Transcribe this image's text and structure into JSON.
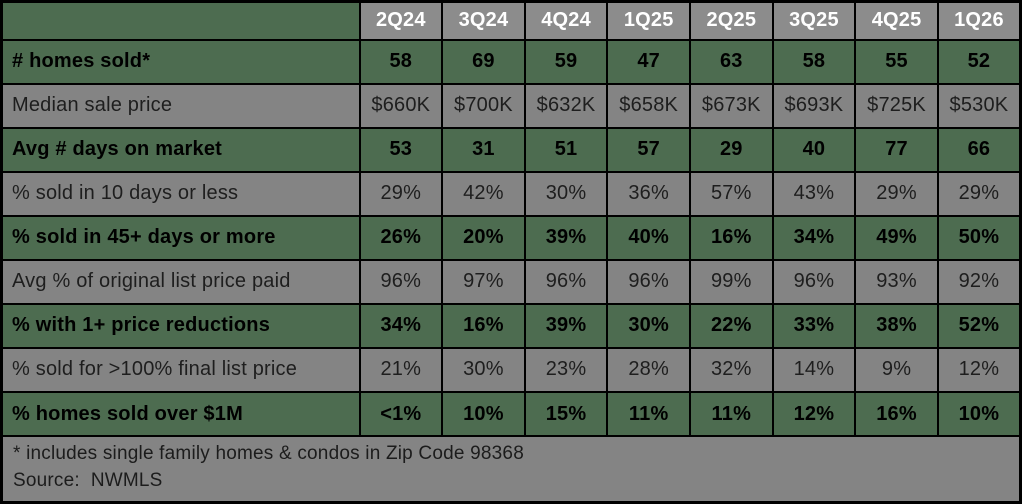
{
  "colors": {
    "green": "#4d6c50",
    "row_gray": "#848484",
    "header_gray": "#8c8c8c",
    "border": "#000000",
    "header_text": "#ffffff"
  },
  "chart_data": {
    "type": "table",
    "title": "",
    "quarters": [
      "2Q24",
      "3Q24",
      "4Q24",
      "1Q25",
      "2Q25",
      "3Q25",
      "4Q25",
      "1Q26"
    ],
    "rows": [
      {
        "label": "# homes sold*",
        "highlight": true,
        "values": [
          "58",
          "69",
          "59",
          "47",
          "63",
          "58",
          "55",
          "52"
        ]
      },
      {
        "label": "Median sale price",
        "highlight": false,
        "values": [
          "$660K",
          "$700K",
          "$632K",
          "$658K",
          "$673K",
          "$693K",
          "$725K",
          "$530K"
        ]
      },
      {
        "label": "Avg # days on market",
        "highlight": true,
        "values": [
          "53",
          "31",
          "51",
          "57",
          "29",
          "40",
          "77",
          "66"
        ]
      },
      {
        "label": "% sold in 10 days or less",
        "highlight": false,
        "values": [
          "29%",
          "42%",
          "30%",
          "36%",
          "57%",
          "43%",
          "29%",
          "29%"
        ]
      },
      {
        "label": "% sold in 45+ days or more",
        "highlight": true,
        "values": [
          "26%",
          "20%",
          "39%",
          "40%",
          "16%",
          "34%",
          "49%",
          "50%"
        ]
      },
      {
        "label": "Avg % of original list price paid",
        "highlight": false,
        "values": [
          "96%",
          "97%",
          "96%",
          "96%",
          "99%",
          "96%",
          "93%",
          "92%"
        ]
      },
      {
        "label": "% with 1+ price reductions",
        "highlight": true,
        "values": [
          "34%",
          "16%",
          "39%",
          "30%",
          "22%",
          "33%",
          "38%",
          "52%"
        ]
      },
      {
        "label": "% sold for >100% final list price",
        "highlight": false,
        "values": [
          "21%",
          "30%",
          "23%",
          "28%",
          "32%",
          "14%",
          "9%",
          "12%"
        ]
      },
      {
        "label": "% homes sold over $1M",
        "highlight": true,
        "values": [
          "<1%",
          "10%",
          "15%",
          "11%",
          "11%",
          "12%",
          "16%",
          "10%"
        ]
      }
    ]
  },
  "footer": {
    "note": "* includes single family homes & condos in Zip Code 98368",
    "source": "Source:  NWMLS"
  }
}
